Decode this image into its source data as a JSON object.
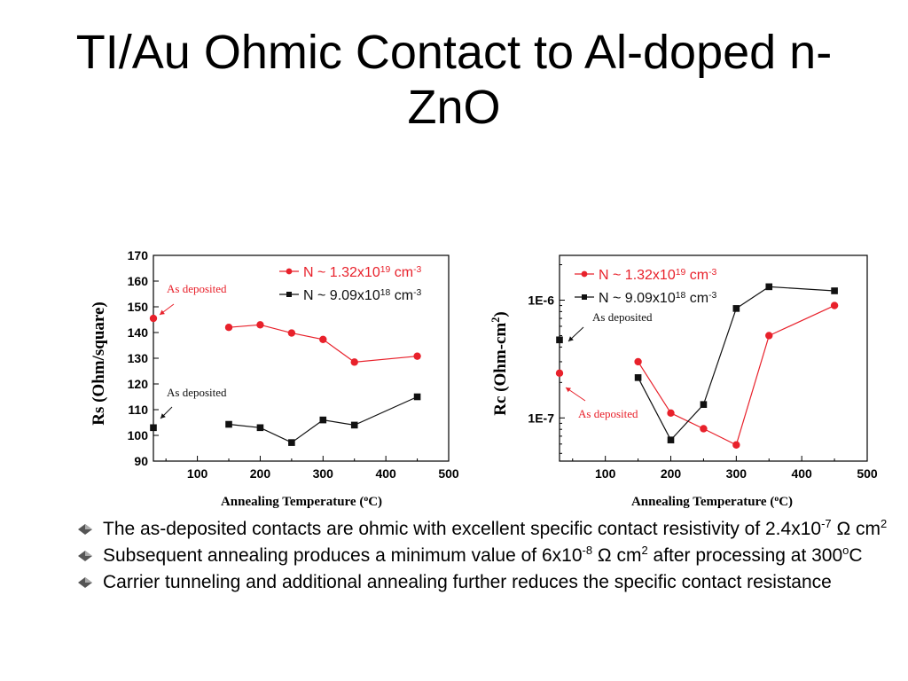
{
  "slide": {
    "title": "TI/Au Ohmic Contact to Al-doped n-ZnO",
    "bullets": [
      {
        "parts": [
          "The as-deposited contacts are ohmic with excellent specific contact resistivity of 2.4x10",
          "-7",
          " Ω cm",
          "2",
          ""
        ]
      },
      {
        "parts": [
          "Subsequent annealing produces a minimum value of 6x10",
          "-8",
          " Ω cm",
          "2",
          " after processing at 300",
          "o",
          "C"
        ]
      },
      {
        "parts": [
          "Carrier tunneling and additional annealing further reduces the specific contact resistance"
        ]
      }
    ]
  },
  "chart_data": [
    {
      "type": "line",
      "title": "",
      "xlabel": "Annealing Temperature (",
      "xlabel_sup": "o",
      "xlabel_end": "C)",
      "ylabel": "Rs (Ohm/square)",
      "xlim": [
        30,
        500
      ],
      "ylim": [
        90,
        170
      ],
      "xticks": [
        100,
        200,
        300,
        400,
        500
      ],
      "yticks": [
        90,
        100,
        110,
        120,
        130,
        140,
        150,
        160,
        170
      ],
      "legend_position": "top-right",
      "series": [
        {
          "name": "N ~ 1.32x10",
          "name_sup": "19",
          "name_end": " cm",
          "name_end_sup": "-3",
          "color": "#e8212b",
          "marker": "circle",
          "as_deposited": {
            "x": 30,
            "y": 145.5
          },
          "x": [
            150,
            200,
            250,
            300,
            350,
            450
          ],
          "y": [
            142,
            143,
            139.8,
            137.3,
            128.5,
            130.8
          ]
        },
        {
          "name": "N ~ 9.09x10",
          "name_sup": "18",
          "name_end": " cm",
          "name_end_sup": "-3",
          "color": "#111111",
          "marker": "square",
          "as_deposited": {
            "x": 30,
            "y": 103
          },
          "x": [
            150,
            200,
            250,
            300,
            350,
            450
          ],
          "y": [
            104.3,
            103,
            97.2,
            106,
            104,
            115
          ]
        }
      ],
      "annotations": [
        {
          "text": "As deposited",
          "color": "#e8212b",
          "series": 0
        },
        {
          "text": "As deposited",
          "color": "#111111",
          "series": 1
        }
      ]
    },
    {
      "type": "line",
      "title": "",
      "xlabel": "Annealing Temperature (",
      "xlabel_sup": "o",
      "xlabel_end": "C)",
      "ylabel": "Rc (Ohm-cm",
      "ylabel_sup": "2",
      "ylabel_end": ")",
      "yscale": "log",
      "xlim": [
        30,
        500
      ],
      "ylim": [
        4.3e-08,
        2.4e-06
      ],
      "xticks": [
        100,
        200,
        300,
        400,
        500
      ],
      "ytick_labels": [
        {
          "value": 1e-06,
          "label": "1E-6"
        },
        {
          "value": 1e-07,
          "label": "1E-7"
        }
      ],
      "legend_position": "top-left",
      "series": [
        {
          "name": "N ~ 1.32x10",
          "name_sup": "19",
          "name_end": " cm",
          "name_end_sup": "-3",
          "color": "#e8212b",
          "marker": "circle",
          "as_deposited": {
            "x": 30,
            "y": 2.4e-07
          },
          "x": [
            150,
            200,
            250,
            300,
            350,
            450
          ],
          "y": [
            3e-07,
            1.1e-07,
            8.1e-08,
            5.9e-08,
            5e-07,
            9e-07
          ]
        },
        {
          "name": "N ~ 9.09x10",
          "name_sup": "18",
          "name_end": " cm",
          "name_end_sup": "-3",
          "color": "#111111",
          "marker": "square",
          "as_deposited": {
            "x": 30,
            "y": 4.6e-07
          },
          "x": [
            150,
            200,
            250,
            300,
            350,
            450
          ],
          "y": [
            2.2e-07,
            6.5e-08,
            1.3e-07,
            8.5e-07,
            1.3e-06,
            1.2e-06
          ]
        }
      ],
      "annotations": [
        {
          "text": "As deposited",
          "color": "#111111",
          "series": 1
        },
        {
          "text": "As deposited",
          "color": "#e8212b",
          "series": 0
        }
      ]
    }
  ]
}
